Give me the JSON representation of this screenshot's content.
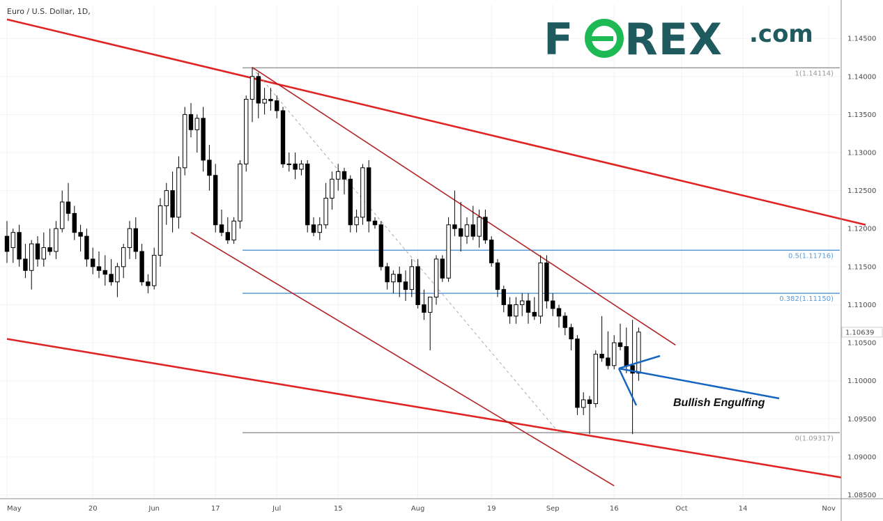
{
  "header": {
    "title": "Euro / U.S. Dollar, 1D,"
  },
  "logo": {
    "brand_left": "F",
    "brand_right": "REX",
    "suffix": ".com",
    "accent": "#1db954",
    "brand_color": "#1f5a5f"
  },
  "annotation": {
    "text": "Bullish Engulfing"
  },
  "price_label": "1.10639",
  "chart_data": {
    "type": "candlestick",
    "instrument": "Euro / U.S. Dollar",
    "timeframe": "1D",
    "ylim": [
      1.0845,
      1.1495
    ],
    "y_ticks": [
      1.145,
      1.14,
      1.135,
      1.13,
      1.125,
      1.12,
      1.115,
      1.11,
      1.105,
      1.1,
      1.095,
      1.09,
      1.085
    ],
    "y_tick_labels": [
      "1.14500",
      "1.14000",
      "1.13500",
      "1.13000",
      "1.12500",
      "1.12000",
      "1.11500",
      "1.11000",
      "1.10500",
      "1.10000",
      "1.09500",
      "1.09000",
      "1.08500"
    ],
    "x_ticks": [
      {
        "bar": 0,
        "label": "May"
      },
      {
        "bar": 14,
        "label": "20"
      },
      {
        "bar": 24,
        "label": "Jun"
      },
      {
        "bar": 34,
        "label": "17"
      },
      {
        "bar": 44,
        "label": "Jul"
      },
      {
        "bar": 54,
        "label": "15"
      },
      {
        "bar": 67,
        "label": "Aug"
      },
      {
        "bar": 79,
        "label": "19"
      },
      {
        "bar": 89,
        "label": "Sep"
      },
      {
        "bar": 99,
        "label": "16"
      },
      {
        "bar": 110,
        "label": "Oct"
      },
      {
        "bar": 120,
        "label": "14"
      },
      {
        "bar": 134,
        "label": "Nov"
      }
    ],
    "current_price": 1.10639,
    "fibonacci": [
      {
        "level": "1",
        "value": 1.14114,
        "label": "1(1.14114)",
        "color": "#999999"
      },
      {
        "level": "0.5",
        "value": 1.11716,
        "label": "0.5(1.11716)",
        "color": "#5b9bd5"
      },
      {
        "level": "0.382",
        "value": 1.1115,
        "label": "0.382(1.11150)",
        "color": "#5b9bd5"
      },
      {
        "level": "0",
        "value": 1.09317,
        "label": "0(1.09317)",
        "color": "#999999"
      }
    ],
    "trendlines": [
      {
        "name": "outer-upper",
        "from": {
          "bar": 0,
          "price": 1.1475
        },
        "to": {
          "bar": 140,
          "price": 1.1205
        },
        "color": "#e02424"
      },
      {
        "name": "outer-lower",
        "from": {
          "bar": 0,
          "price": 1.1055
        },
        "to": {
          "bar": 136,
          "price": 1.0873
        },
        "color": "#e02424"
      },
      {
        "name": "inner-upper",
        "from": {
          "bar": 40,
          "price": 1.1412
        },
        "to": {
          "bar": 109,
          "price": 1.1047
        },
        "color": "#b22222"
      },
      {
        "name": "inner-lower",
        "from": {
          "bar": 30,
          "price": 1.1195
        },
        "to": {
          "bar": 99,
          "price": 1.0862
        },
        "color": "#b22222"
      },
      {
        "name": "fib-diagonal",
        "from": {
          "bar": 40,
          "price": 1.14114
        },
        "to": {
          "bar": 90,
          "price": 1.09317
        },
        "color": "#aaaaaa",
        "dashed": true
      }
    ],
    "candles": [
      [
        1.119,
        1.121,
        1.1155,
        1.117
      ],
      [
        1.1175,
        1.12,
        1.1155,
        1.1195
      ],
      [
        1.1195,
        1.1205,
        1.115,
        1.116
      ],
      [
        1.116,
        1.118,
        1.1135,
        1.1145
      ],
      [
        1.1145,
        1.1185,
        1.112,
        1.118
      ],
      [
        1.118,
        1.119,
        1.115,
        1.116
      ],
      [
        1.116,
        1.1195,
        1.115,
        1.1175
      ],
      [
        1.1175,
        1.12,
        1.1165,
        1.117
      ],
      [
        1.117,
        1.121,
        1.116,
        1.12
      ],
      [
        1.12,
        1.125,
        1.1195,
        1.1235
      ],
      [
        1.1235,
        1.126,
        1.121,
        1.122
      ],
      [
        1.122,
        1.123,
        1.1185,
        1.1195
      ],
      [
        1.1195,
        1.1205,
        1.117,
        1.119
      ],
      [
        1.119,
        1.12,
        1.115,
        1.116
      ],
      [
        1.116,
        1.1175,
        1.114,
        1.115
      ],
      [
        1.115,
        1.117,
        1.1135,
        1.1145
      ],
      [
        1.1145,
        1.1165,
        1.1125,
        1.114
      ],
      [
        1.114,
        1.116,
        1.1125,
        1.113
      ],
      [
        1.113,
        1.1155,
        1.111,
        1.115
      ],
      [
        1.115,
        1.118,
        1.1135,
        1.1175
      ],
      [
        1.1175,
        1.121,
        1.116,
        1.12
      ],
      [
        1.12,
        1.1215,
        1.116,
        1.117
      ],
      [
        1.117,
        1.118,
        1.1125,
        1.113
      ],
      [
        1.113,
        1.114,
        1.1115,
        1.1125
      ],
      [
        1.1125,
        1.1175,
        1.112,
        1.1165
      ],
      [
        1.1165,
        1.124,
        1.115,
        1.123
      ],
      [
        1.123,
        1.126,
        1.1205,
        1.125
      ],
      [
        1.125,
        1.1275,
        1.1195,
        1.1215
      ],
      [
        1.1215,
        1.1295,
        1.12,
        1.128
      ],
      [
        1.128,
        1.136,
        1.127,
        1.135
      ],
      [
        1.135,
        1.1365,
        1.132,
        1.133
      ],
      [
        1.133,
        1.135,
        1.13,
        1.1345
      ],
      [
        1.1345,
        1.136,
        1.1275,
        1.129
      ],
      [
        1.129,
        1.131,
        1.125,
        1.127
      ],
      [
        1.127,
        1.1285,
        1.1195,
        1.1205
      ],
      [
        1.1205,
        1.1225,
        1.119,
        1.1195
      ],
      [
        1.1195,
        1.1215,
        1.118,
        1.1185
      ],
      [
        1.1185,
        1.1215,
        1.118,
        1.121
      ],
      [
        1.121,
        1.129,
        1.12,
        1.1285
      ],
      [
        1.1285,
        1.1375,
        1.1275,
        1.137
      ],
      [
        1.137,
        1.1412,
        1.134,
        1.14
      ],
      [
        1.14,
        1.1405,
        1.1345,
        1.1365
      ],
      [
        1.1365,
        1.1385,
        1.135,
        1.137
      ],
      [
        1.137,
        1.1385,
        1.1355,
        1.1368
      ],
      [
        1.1368,
        1.1375,
        1.1345,
        1.1355
      ],
      [
        1.1355,
        1.136,
        1.128,
        1.1285
      ],
      [
        1.1285,
        1.13,
        1.1275,
        1.1285
      ],
      [
        1.1285,
        1.13,
        1.1265,
        1.1278
      ],
      [
        1.1278,
        1.129,
        1.127,
        1.1285
      ],
      [
        1.1285,
        1.129,
        1.1195,
        1.1205
      ],
      [
        1.1205,
        1.1215,
        1.119,
        1.1195
      ],
      [
        1.1195,
        1.1215,
        1.1185,
        1.1205
      ],
      [
        1.1205,
        1.126,
        1.12,
        1.124
      ],
      [
        1.124,
        1.1275,
        1.1225,
        1.1265
      ],
      [
        1.1265,
        1.1285,
        1.125,
        1.1275
      ],
      [
        1.1275,
        1.128,
        1.1245,
        1.1265
      ],
      [
        1.1265,
        1.127,
        1.1195,
        1.1205
      ],
      [
        1.1205,
        1.1225,
        1.1195,
        1.1215
      ],
      [
        1.1215,
        1.1285,
        1.1205,
        1.128
      ],
      [
        1.128,
        1.129,
        1.1195,
        1.121
      ],
      [
        1.121,
        1.1215,
        1.12,
        1.1205
      ],
      [
        1.1205,
        1.121,
        1.1145,
        1.115
      ],
      [
        1.115,
        1.1155,
        1.112,
        1.113
      ],
      [
        1.113,
        1.1145,
        1.1115,
        1.114
      ],
      [
        1.114,
        1.115,
        1.111,
        1.113
      ],
      [
        1.113,
        1.1145,
        1.1105,
        1.112
      ],
      [
        1.112,
        1.116,
        1.111,
        1.115
      ],
      [
        1.115,
        1.116,
        1.1095,
        1.11
      ],
      [
        1.11,
        1.112,
        1.108,
        1.109
      ],
      [
        1.109,
        1.111,
        1.104,
        1.111
      ],
      [
        1.111,
        1.1165,
        1.11,
        1.116
      ],
      [
        1.116,
        1.1165,
        1.113,
        1.1135
      ],
      [
        1.1135,
        1.1215,
        1.113,
        1.1205
      ],
      [
        1.1205,
        1.125,
        1.119,
        1.12
      ],
      [
        1.12,
        1.1235,
        1.117,
        1.119
      ],
      [
        1.119,
        1.1215,
        1.118,
        1.1205
      ],
      [
        1.1205,
        1.123,
        1.1185,
        1.119
      ],
      [
        1.119,
        1.1225,
        1.1175,
        1.1215
      ],
      [
        1.1215,
        1.1225,
        1.118,
        1.1185
      ],
      [
        1.1185,
        1.119,
        1.115,
        1.1155
      ],
      [
        1.1155,
        1.116,
        1.111,
        1.112
      ],
      [
        1.112,
        1.1125,
        1.109,
        1.11
      ],
      [
        1.11,
        1.111,
        1.1075,
        1.1085
      ],
      [
        1.1085,
        1.111,
        1.1075,
        1.11
      ],
      [
        1.11,
        1.1115,
        1.1085,
        1.1105
      ],
      [
        1.1105,
        1.1115,
        1.1075,
        1.109
      ],
      [
        1.109,
        1.111,
        1.108,
        1.1085
      ],
      [
        1.1085,
        1.1165,
        1.1075,
        1.1155
      ],
      [
        1.1155,
        1.1165,
        1.1095,
        1.1105
      ],
      [
        1.1105,
        1.1115,
        1.1085,
        1.1095
      ],
      [
        1.1095,
        1.11,
        1.107,
        1.1085
      ],
      [
        1.1085,
        1.109,
        1.106,
        1.107
      ],
      [
        1.107,
        1.1075,
        1.104,
        1.1055
      ],
      [
        1.1055,
        1.106,
        1.0955,
        1.0965
      ],
      [
        1.0965,
        1.0985,
        1.0955,
        1.0975
      ],
      [
        1.0975,
        1.098,
        1.093,
        1.097
      ],
      [
        1.097,
        1.104,
        1.0965,
        1.1035
      ],
      [
        1.1035,
        1.1085,
        1.1025,
        1.103
      ],
      [
        1.103,
        1.1065,
        1.1015,
        1.102
      ],
      [
        1.102,
        1.106,
        1.1015,
        1.105
      ],
      [
        1.105,
        1.1075,
        1.104,
        1.1045
      ],
      [
        1.1045,
        1.107,
        1.101,
        1.102
      ],
      [
        1.102,
        1.108,
        1.093,
        1.101
      ],
      [
        1.101,
        1.107,
        1.1,
        1.1064
      ]
    ]
  }
}
